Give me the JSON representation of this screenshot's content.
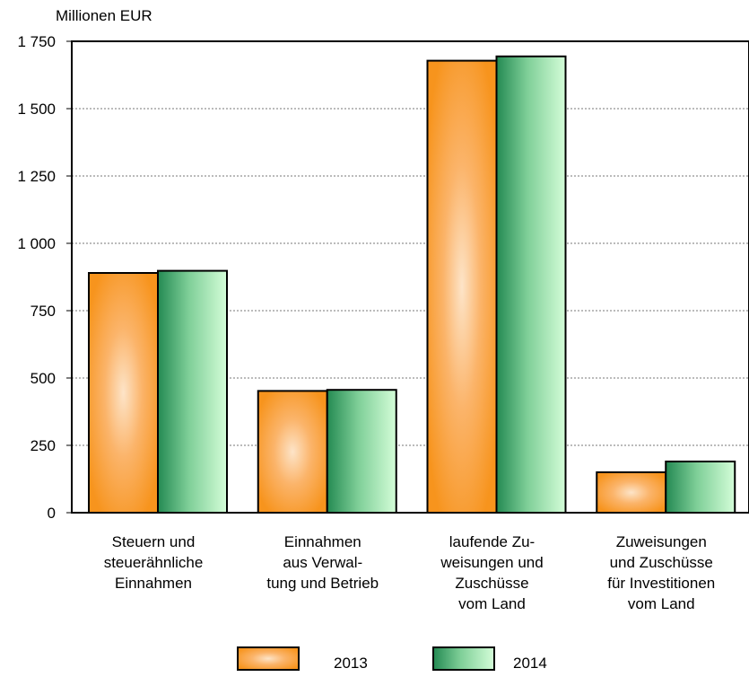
{
  "chart_data": {
    "type": "bar",
    "ylabel": "Millionen EUR",
    "ylim": [
      0,
      1750
    ],
    "yticks": [
      0,
      250,
      500,
      750,
      1000,
      1250,
      1500,
      1750
    ],
    "ytick_labels": [
      "0",
      "250",
      "500",
      "750",
      "1 000",
      "1 250",
      "1 500",
      "1 750"
    ],
    "categories": [
      "Steuern und\nsteuerähnliche\nEinnahmen",
      "Einnahmen\naus Verwal-\ntung und Betrieb",
      "laufende Zu-\nweisungen und\nZuschüsse\nvom Land",
      "Zuweisungen\nund Zuschüsse\nfür Investitionen\nvom Land"
    ],
    "series": [
      {
        "name": "2013",
        "values": [
          890,
          452,
          1678,
          150
        ],
        "color": "#f7941d"
      },
      {
        "name": "2014",
        "values": [
          898,
          456,
          1694,
          190
        ],
        "color": "#2e8b57"
      }
    ],
    "grid": true,
    "legend_position": "bottom-center"
  }
}
